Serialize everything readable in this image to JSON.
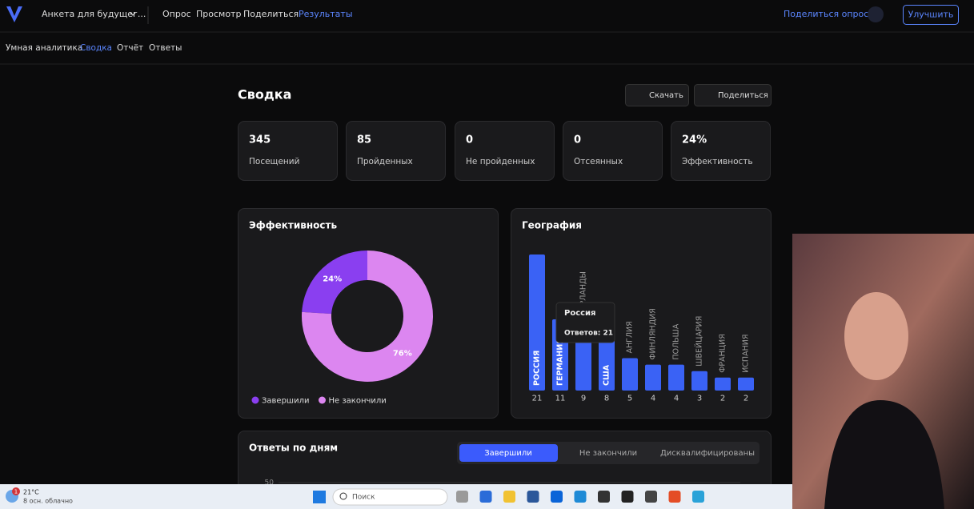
{
  "nav": {
    "survey": "Анкета для будущег...",
    "items": [
      "Опрос",
      "Просмотр",
      "Поделиться",
      "Результаты"
    ],
    "share_survey": "Поделиться опросом",
    "upgrade": "Улучшить"
  },
  "subnav": [
    "Умная аналитика",
    "Сводка",
    "Отчёт",
    "Ответы"
  ],
  "summary": {
    "title": "Сводка",
    "download": "Скачать",
    "share": "Поделиться"
  },
  "stats": [
    {
      "value": "345",
      "label": "Посещений"
    },
    {
      "value": "85",
      "label": "Пройденных"
    },
    {
      "value": "0",
      "label": "Не пройденных"
    },
    {
      "value": "0",
      "label": "Отсеянных"
    },
    {
      "value": "24%",
      "label": "Эффективность"
    }
  ],
  "donut_chart": {
    "type": "donut",
    "title": "Эффективность",
    "series": [
      {
        "name": "Завершили",
        "color": "#8a3ff0",
        "value": 24,
        "value_label": "24%"
      },
      {
        "name": "Не закончили",
        "color": "#dc86f0",
        "value": 76,
        "value_label": "76%"
      }
    ]
  },
  "bar_chart": {
    "type": "bar",
    "title": "География",
    "color": "#3a62f5",
    "categories": [
      "РОССИЯ",
      "ГЕРМАНИЯ",
      "НИДЕРЛАНДЫ",
      "США",
      "АНГЛИЯ",
      "ФИНЛЯНДИЯ",
      "ПОЛЬША",
      "ШВЕЙЦАРИЯ",
      "ФРАНЦИЯ",
      "ИСПАНИЯ"
    ],
    "values": [
      21,
      11,
      9,
      8,
      5,
      4,
      4,
      3,
      2,
      2
    ],
    "tooltip": {
      "title": "Россия",
      "text": "Ответов: 21"
    }
  },
  "daily": {
    "title": "Ответы по дням",
    "tabs": [
      "Завершили",
      "Не закончили",
      "Дисквалифицированы"
    ],
    "ytick": "50"
  },
  "taskbar": {
    "badge": "1",
    "temperature": "21°C",
    "weather": "8 осн. облачно",
    "search": "Поиск"
  }
}
